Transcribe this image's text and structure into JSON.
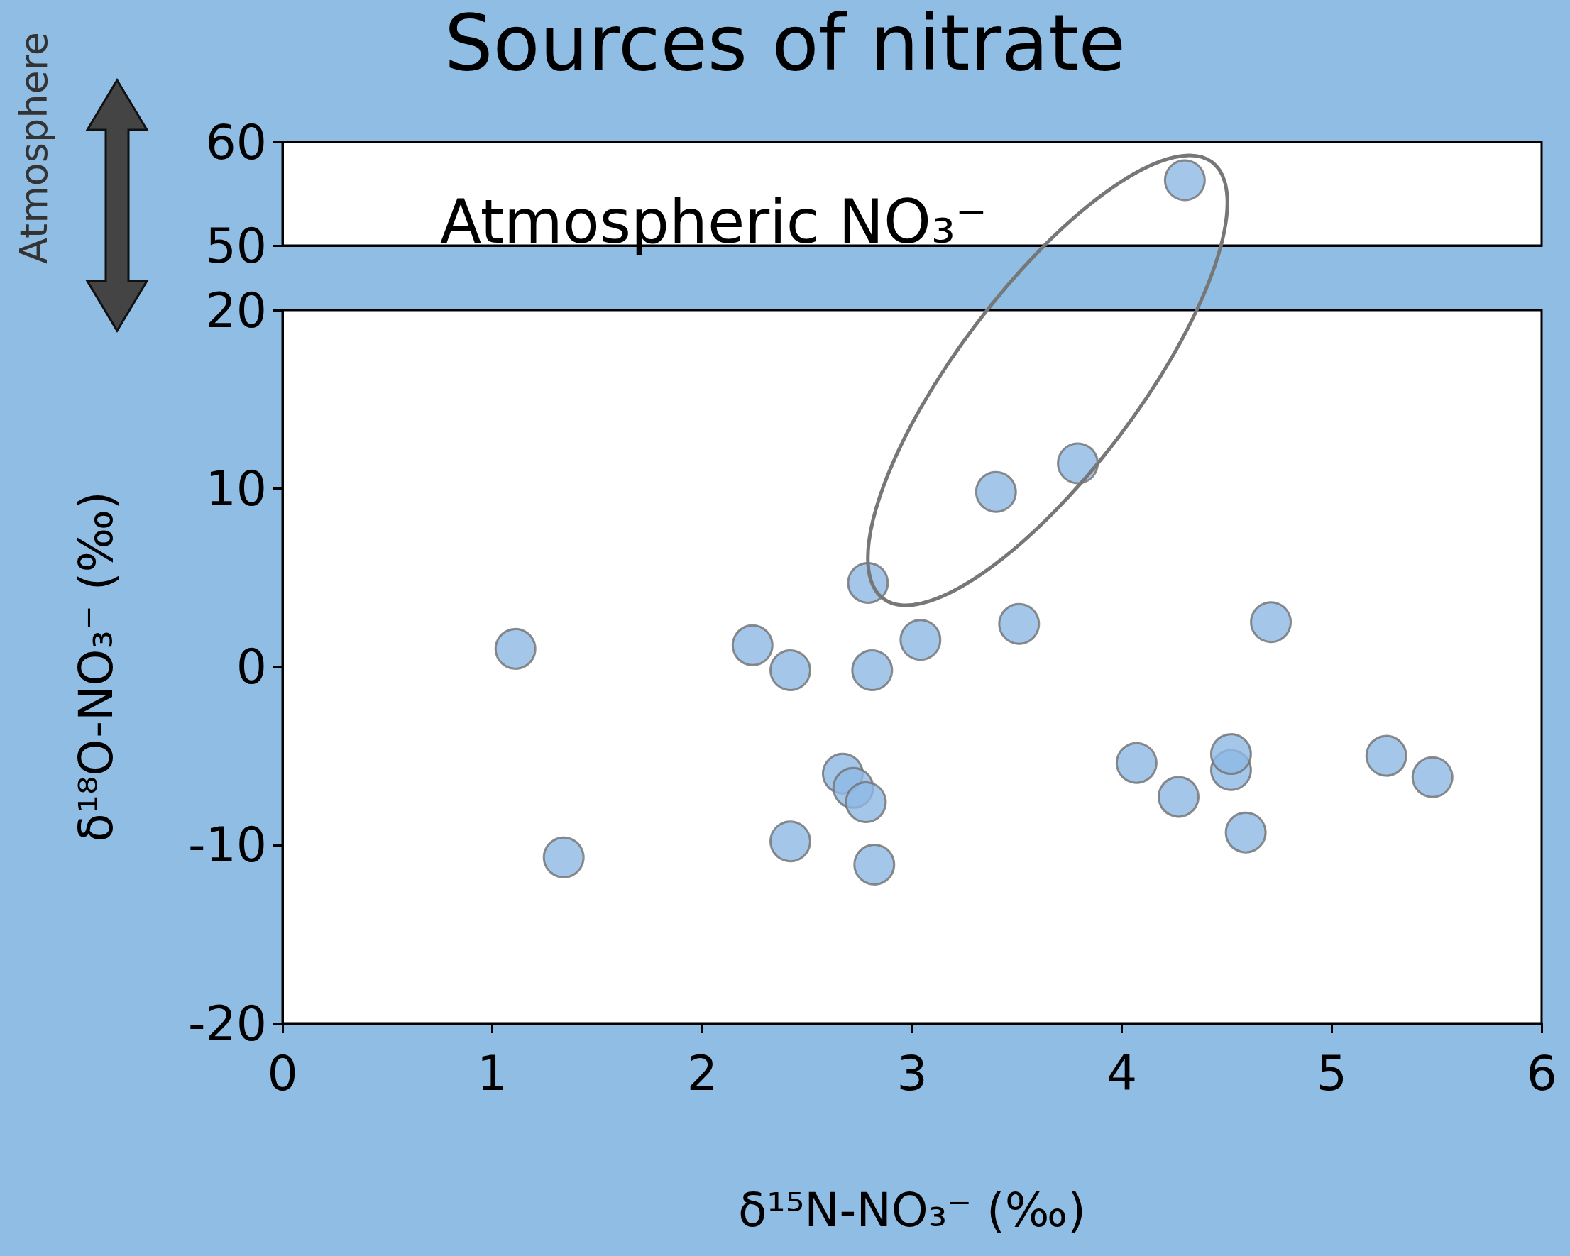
{
  "chart_data": [
    {
      "type": "scatter",
      "title": "Sources of nitrate",
      "annotations": [
        "Atmospheric NO₃⁻",
        "Atmosphere"
      ],
      "marker": "circle",
      "tick_labels": "y",
      "xlim": [
        0,
        6
      ],
      "xticks": [
        0,
        1,
        2,
        3,
        4,
        5,
        6
      ],
      "ylim": [
        50,
        60
      ],
      "yticks": [
        50,
        60
      ],
      "series": [
        {
          "color": "#8db8e3",
          "x": [
            4.3
          ],
          "values": [
            56.3
          ]
        }
      ]
    },
    {
      "type": "scatter",
      "xlabel": "δ¹⁵N-NO₃⁻ (‰)",
      "ylabel": "δ¹⁸O-NO₃⁻ (‰)",
      "marker": "circle",
      "xlim": [
        0,
        6
      ],
      "xticks": [
        0,
        1,
        2,
        3,
        4,
        5,
        6
      ],
      "ylim": [
        -20,
        20
      ],
      "yticks": [
        -20,
        -10,
        0,
        10,
        20
      ],
      "series": [
        {
          "color": "#8db8e3",
          "x": [
            1.11,
            1.34,
            2.24,
            2.42,
            2.42,
            2.67,
            2.72,
            2.78,
            2.79,
            2.81,
            2.82,
            3.04,
            3.4,
            3.51,
            3.79,
            4.07,
            4.27,
            4.52,
            4.52,
            4.59,
            4.71,
            5.26,
            5.48
          ],
          "values": [
            1.0,
            -10.7,
            1.2,
            -0.2,
            -9.8,
            -6.0,
            -6.8,
            -7.6,
            4.7,
            -0.2,
            -11.1,
            1.5,
            9.8,
            2.4,
            11.4,
            -5.4,
            -7.3,
            -5.8,
            -4.9,
            -9.3,
            2.5,
            -5.0,
            -6.2
          ]
        }
      ]
    }
  ]
}
